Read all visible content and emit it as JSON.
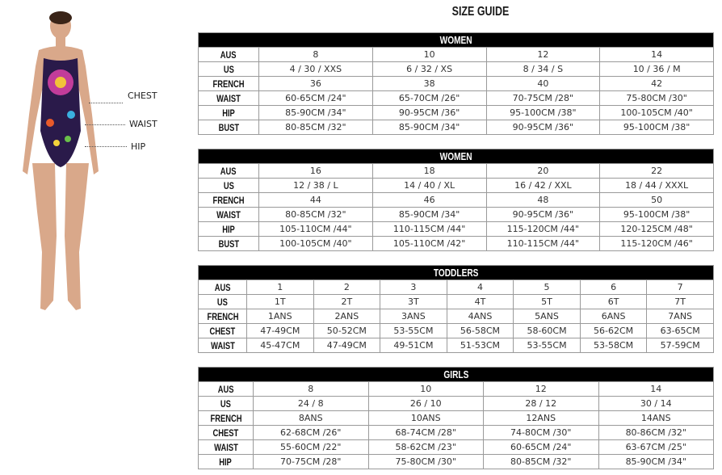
{
  "title": "SIZE GUIDE",
  "figure_labels": {
    "chest": "CHEST",
    "waist": "WAIST",
    "hip": "HIP"
  },
  "tables": [
    {
      "heading": "WOMEN",
      "rows": [
        {
          "label": "AUS",
          "cells": [
            "8",
            "10",
            "12",
            "14"
          ]
        },
        {
          "label": "US",
          "cells": [
            "4 / 30 / XXS",
            "6 / 32 / XS",
            "8 / 34 / S",
            "10 / 36 / M"
          ]
        },
        {
          "label": "FRENCH",
          "cells": [
            "36",
            "38",
            "40",
            "42"
          ]
        },
        {
          "label": "WAIST",
          "cells": [
            "60-65CM /24\"",
            "65-70CM /26\"",
            "70-75CM /28\"",
            "75-80CM /30\""
          ]
        },
        {
          "label": "HIP",
          "cells": [
            "85-90CM /34\"",
            "90-95CM /36\"",
            "95-100CM /38\"",
            "100-105CM /40\""
          ]
        },
        {
          "label": "BUST",
          "cells": [
            "80-85CM /32\"",
            "85-90CM /34\"",
            "90-95CM /36\"",
            "95-100CM /38\""
          ]
        }
      ]
    },
    {
      "heading": "WOMEN",
      "rows": [
        {
          "label": "AUS",
          "cells": [
            "16",
            "18",
            "20",
            "22"
          ]
        },
        {
          "label": "US",
          "cells": [
            "12 / 38 / L",
            "14 / 40 / XL",
            "16 / 42 / XXL",
            "18 / 44 / XXXL"
          ]
        },
        {
          "label": "FRENCH",
          "cells": [
            "44",
            "46",
            "48",
            "50"
          ]
        },
        {
          "label": "WAIST",
          "cells": [
            "80-85CM /32\"",
            "85-90CM /34\"",
            "90-95CM /36\"",
            "95-100CM /38\""
          ]
        },
        {
          "label": "HIP",
          "cells": [
            "105-110CM /44\"",
            "110-115CM /44\"",
            "115-120CM /44\"",
            "120-125CM /48\""
          ]
        },
        {
          "label": "BUST",
          "cells": [
            "100-105CM /40\"",
            "105-110CM /42\"",
            "110-115CM /44\"",
            "115-120CM /46\""
          ]
        }
      ]
    },
    {
      "heading": "TODDLERS",
      "rows": [
        {
          "label": "AUS",
          "cells": [
            "1",
            "2",
            "3",
            "4",
            "5",
            "6",
            "7"
          ]
        },
        {
          "label": "US",
          "cells": [
            "1T",
            "2T",
            "3T",
            "4T",
            "5T",
            "6T",
            "7T"
          ]
        },
        {
          "label": "FRENCH",
          "cells": [
            "1ANS",
            "2ANS",
            "3ANS",
            "4ANS",
            "5ANS",
            "6ANS",
            "7ANS"
          ]
        },
        {
          "label": "CHEST",
          "cells": [
            "47-49CM",
            "50-52CM",
            "53-55CM",
            "56-58CM",
            "58-60CM",
            "56-62CM",
            "63-65CM"
          ]
        },
        {
          "label": "WAIST",
          "cells": [
            "45-47CM",
            "47-49CM",
            "49-51CM",
            "51-53CM",
            "53-55CM",
            "53-58CM",
            "57-59CM"
          ]
        }
      ]
    },
    {
      "heading": "GIRLS",
      "rows": [
        {
          "label": "AUS",
          "cells": [
            "8",
            "10",
            "12",
            "14"
          ]
        },
        {
          "label": "US",
          "cells": [
            "24 / 8",
            "26 / 10",
            "28 / 12",
            "30 / 14"
          ]
        },
        {
          "label": "FRENCH",
          "cells": [
            "8ANS",
            "10ANS",
            "12ANS",
            "14ANS"
          ]
        },
        {
          "label": "CHEST",
          "cells": [
            "62-68CM /26\"",
            "68-74CM /28\"",
            "74-80CM /30\"",
            "80-86CM /32\""
          ]
        },
        {
          "label": "WAIST",
          "cells": [
            "55-60CM /22\"",
            "58-62CM /23\"",
            "60-65CM /24\"",
            "63-67CM /25\""
          ]
        },
        {
          "label": "HIP",
          "cells": [
            "70-75CM /28\"",
            "75-80CM /30\"",
            "80-85CM /32\"",
            "85-90CM /34\""
          ]
        }
      ]
    }
  ]
}
